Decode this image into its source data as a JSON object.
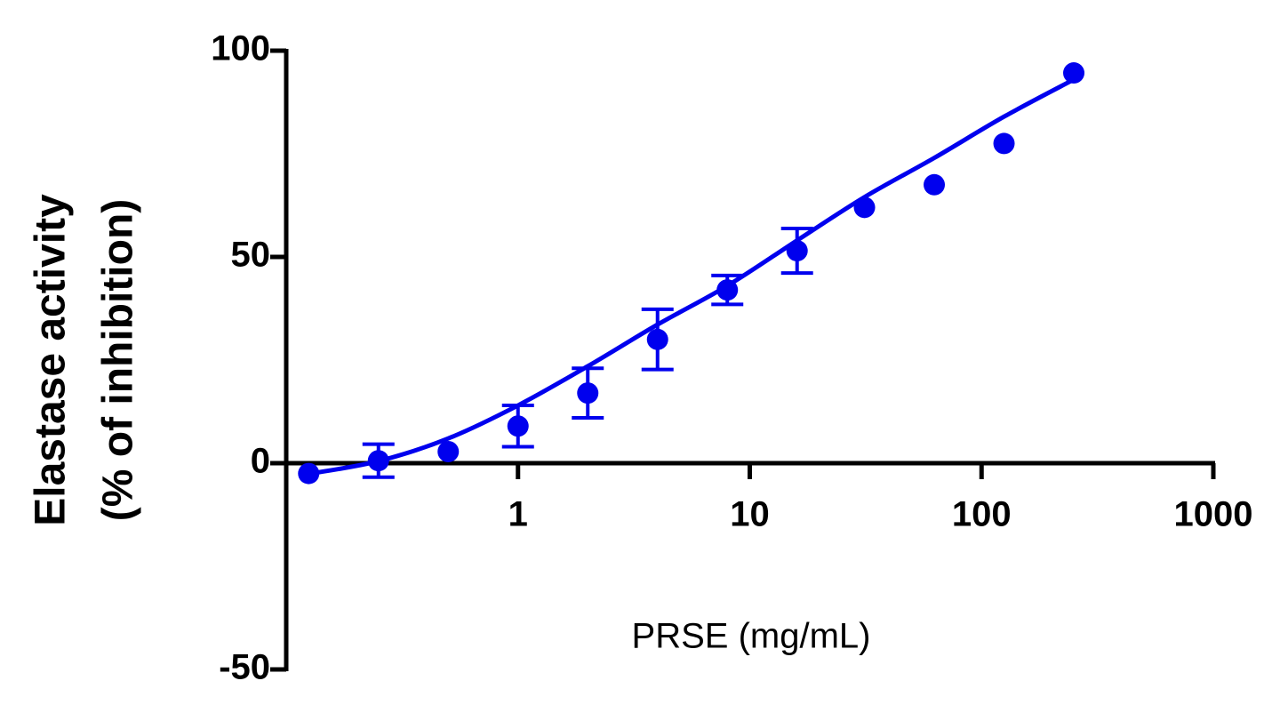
{
  "chart_data": {
    "type": "scatter",
    "ylabel": [
      "Elastase activity",
      "(% of inhibition)"
    ],
    "xlabel": "PRSE (mg/mL)",
    "xscale": "log",
    "xlim": [
      0.1,
      1000
    ],
    "xticks": [
      1,
      10,
      100,
      1000
    ],
    "ylim": [
      -50,
      100
    ],
    "yticks": [
      -50,
      0,
      50,
      100
    ],
    "color": "#0000ee",
    "series": [
      {
        "color": "#0000ee",
        "x": [
          0.125,
          0.25,
          0.5,
          1,
          2,
          4,
          8,
          16,
          31.25,
          62.5,
          125,
          250
        ],
        "values": [
          -2.5,
          0.6,
          2.8,
          9,
          17,
          30,
          42,
          51.5,
          62,
          67.5,
          77.5,
          94.6
        ],
        "errors": [
          null,
          4,
          null,
          5,
          6,
          7.3,
          3.5,
          5.4,
          null,
          null,
          null,
          null
        ]
      }
    ],
    "fit": {
      "color": "#0000ee",
      "x": [
        0.125,
        0.25,
        0.5,
        1,
        2,
        4,
        8,
        16,
        31.25,
        62.5,
        125,
        250
      ],
      "values": [
        -2.6,
        0.5,
        6,
        14,
        23.5,
        33.6,
        43,
        54,
        64.5,
        74,
        84,
        93
      ]
    }
  }
}
